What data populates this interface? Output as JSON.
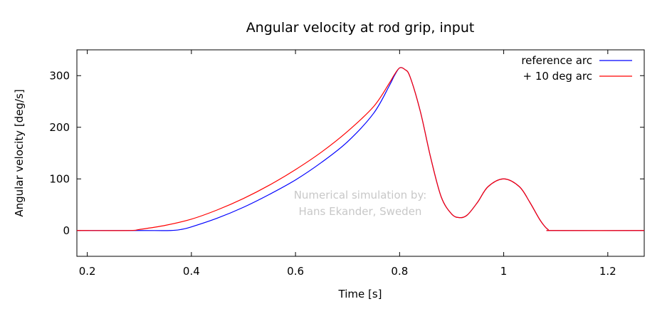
{
  "chart_data": {
    "type": "line",
    "title": "Angular velocity at rod grip, input",
    "xlabel": "Time [s]",
    "ylabel": "Angular velocity [deg/s]",
    "xlim": [
      0.18,
      1.27
    ],
    "ylim": [
      -50,
      350
    ],
    "xticks": [
      0.2,
      0.4,
      0.6,
      0.8,
      1.0,
      1.2
    ],
    "xtick_labels": [
      "0.2",
      "0.4",
      "0.6",
      "0.8",
      "1",
      "1.2"
    ],
    "yticks": [
      0,
      100,
      200,
      300
    ],
    "ytick_labels": [
      "0",
      "100",
      "200",
      "300"
    ],
    "grid": false,
    "legend_position": "top-right",
    "annotation": [
      "Numerical simulation by:",
      "Hans Ekander, Sweden"
    ],
    "colors": {
      "annotation": "#c8c8c8",
      "axes": "#000000"
    },
    "series": [
      {
        "name": "reference arc",
        "color": "#0000ff",
        "x": [
          0.18,
          0.3,
          0.36,
          0.38,
          0.4,
          0.45,
          0.5,
          0.55,
          0.6,
          0.65,
          0.7,
          0.75,
          0.78,
          0.79,
          0.8,
          0.81,
          0.82,
          0.84,
          0.86,
          0.88,
          0.9,
          0.915,
          0.93,
          0.95,
          0.97,
          1.0,
          1.03,
          1.05,
          1.07,
          1.085,
          1.1,
          1.27
        ],
        "y": [
          0,
          0,
          0,
          2,
          7,
          24,
          45,
          70,
          98,
          132,
          172,
          227,
          280,
          300,
          315,
          312,
          298,
          230,
          140,
          65,
          32,
          25,
          30,
          55,
          85,
          100,
          85,
          55,
          20,
          2,
          0,
          0
        ]
      },
      {
        "name": "+ 10 deg arc",
        "color": "#ff0000",
        "x": [
          0.18,
          0.28,
          0.3,
          0.35,
          0.4,
          0.45,
          0.5,
          0.55,
          0.6,
          0.65,
          0.7,
          0.75,
          0.78,
          0.79,
          0.8,
          0.81,
          0.82,
          0.84,
          0.86,
          0.88,
          0.9,
          0.915,
          0.93,
          0.95,
          0.97,
          1.0,
          1.03,
          1.05,
          1.07,
          1.085,
          1.1,
          1.27
        ],
        "y": [
          0,
          0,
          2,
          10,
          22,
          40,
          62,
          88,
          118,
          152,
          192,
          240,
          285,
          302,
          315,
          312,
          298,
          230,
          140,
          65,
          32,
          25,
          30,
          55,
          85,
          100,
          85,
          55,
          20,
          2,
          0,
          0
        ]
      }
    ]
  }
}
